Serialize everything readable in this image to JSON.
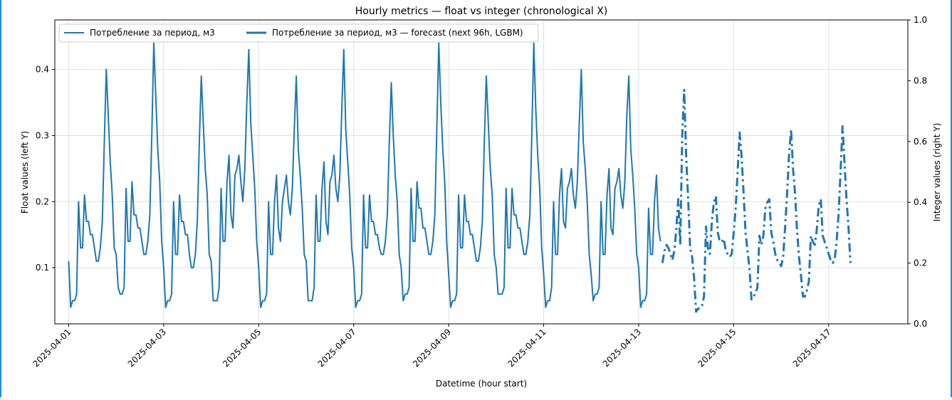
{
  "chart_data": {
    "type": "line",
    "title": "Hourly metrics — float vs integer (chronological X)",
    "xlabel": "Datetime (hour start)",
    "ylabel": "Float values (left Y)",
    "y2label": "Integer values (right Y)",
    "xlim": [
      "2025-03-31T17:00",
      "2025-04-18T16:00"
    ],
    "ylim": [
      0.015,
      0.475
    ],
    "y2lim": [
      0.0,
      1.0
    ],
    "xticks": [
      "2025-04-01",
      "2025-04-03",
      "2025-04-05",
      "2025-04-07",
      "2025-04-09",
      "2025-04-11",
      "2025-04-13",
      "2025-04-15",
      "2025-04-17"
    ],
    "yticks": [
      "0.1",
      "0.2",
      "0.3",
      "0.4"
    ],
    "y2ticks": [
      "0.0",
      "0.2",
      "0.4",
      "0.6",
      "0.8",
      "1.0"
    ],
    "grid": true,
    "legend_position": "top-left",
    "color": "#1f77b4",
    "series": [
      {
        "name": "Потребление за период, м3",
        "style": "solid",
        "start": "2025-04-01T00:00",
        "step_hours": 1,
        "values": [
          0.11,
          0.04,
          0.05,
          0.05,
          0.06,
          0.2,
          0.13,
          0.13,
          0.21,
          0.17,
          0.17,
          0.15,
          0.15,
          0.13,
          0.11,
          0.11,
          0.13,
          0.17,
          0.29,
          0.4,
          0.33,
          0.26,
          0.21,
          0.13,
          0.12,
          0.07,
          0.06,
          0.06,
          0.07,
          0.22,
          0.14,
          0.14,
          0.23,
          0.18,
          0.18,
          0.16,
          0.16,
          0.14,
          0.12,
          0.12,
          0.14,
          0.18,
          0.3,
          0.44,
          0.36,
          0.28,
          0.23,
          0.14,
          0.1,
          0.04,
          0.05,
          0.05,
          0.06,
          0.2,
          0.12,
          0.12,
          0.21,
          0.17,
          0.17,
          0.15,
          0.15,
          0.12,
          0.1,
          0.1,
          0.12,
          0.17,
          0.29,
          0.39,
          0.32,
          0.25,
          0.21,
          0.12,
          0.11,
          0.05,
          0.05,
          0.05,
          0.07,
          0.22,
          0.14,
          0.14,
          0.23,
          0.27,
          0.18,
          0.16,
          0.24,
          0.25,
          0.27,
          0.23,
          0.2,
          0.25,
          0.35,
          0.43,
          0.32,
          0.27,
          0.22,
          0.14,
          0.1,
          0.04,
          0.05,
          0.05,
          0.06,
          0.2,
          0.12,
          0.12,
          0.2,
          0.24,
          0.16,
          0.14,
          0.2,
          0.22,
          0.24,
          0.2,
          0.18,
          0.22,
          0.31,
          0.39,
          0.28,
          0.24,
          0.19,
          0.12,
          0.11,
          0.05,
          0.05,
          0.05,
          0.07,
          0.21,
          0.14,
          0.14,
          0.22,
          0.26,
          0.17,
          0.15,
          0.23,
          0.24,
          0.27,
          0.22,
          0.2,
          0.24,
          0.34,
          0.43,
          0.31,
          0.26,
          0.21,
          0.13,
          0.1,
          0.04,
          0.05,
          0.05,
          0.06,
          0.21,
          0.13,
          0.13,
          0.21,
          0.17,
          0.17,
          0.15,
          0.15,
          0.13,
          0.12,
          0.12,
          0.14,
          0.18,
          0.29,
          0.38,
          0.3,
          0.24,
          0.2,
          0.12,
          0.1,
          0.05,
          0.06,
          0.06,
          0.07,
          0.22,
          0.14,
          0.14,
          0.23,
          0.19,
          0.19,
          0.16,
          0.16,
          0.14,
          0.12,
          0.12,
          0.14,
          0.18,
          0.31,
          0.44,
          0.35,
          0.28,
          0.23,
          0.14,
          0.09,
          0.04,
          0.05,
          0.05,
          0.06,
          0.21,
          0.13,
          0.13,
          0.21,
          0.17,
          0.17,
          0.15,
          0.15,
          0.13,
          0.11,
          0.11,
          0.13,
          0.17,
          0.29,
          0.39,
          0.32,
          0.25,
          0.21,
          0.12,
          0.1,
          0.06,
          0.06,
          0.06,
          0.07,
          0.22,
          0.13,
          0.13,
          0.22,
          0.18,
          0.18,
          0.16,
          0.16,
          0.14,
          0.12,
          0.12,
          0.14,
          0.18,
          0.3,
          0.44,
          0.34,
          0.27,
          0.22,
          0.13,
          0.09,
          0.04,
          0.05,
          0.05,
          0.07,
          0.2,
          0.12,
          0.12,
          0.21,
          0.25,
          0.17,
          0.16,
          0.22,
          0.23,
          0.25,
          0.21,
          0.19,
          0.23,
          0.32,
          0.4,
          0.29,
          0.25,
          0.2,
          0.12,
          0.09,
          0.05,
          0.06,
          0.06,
          0.07,
          0.2,
          0.12,
          0.12,
          0.21,
          0.25,
          0.16,
          0.15,
          0.22,
          0.23,
          0.25,
          0.21,
          0.19,
          0.23,
          0.33,
          0.39,
          0.28,
          0.24,
          0.19,
          0.12,
          0.1,
          0.04,
          0.05,
          0.05,
          0.06,
          0.19,
          0.12,
          0.12,
          0.2,
          0.24,
          0.16,
          0.14
        ]
      },
      {
        "name": "Потребление за период, м3 — forecast (next 96h, LGBM)",
        "style": "dashdot",
        "start": "2025-04-13T12:00",
        "step_hours": 1,
        "values": [
          0.2,
          0.24,
          0.26,
          0.25,
          0.23,
          0.21,
          0.24,
          0.31,
          0.41,
          0.26,
          0.62,
          0.77,
          0.55,
          0.41,
          0.25,
          0.22,
          0.15,
          0.04,
          0.05,
          0.05,
          0.06,
          0.09,
          0.32,
          0.25,
          0.23,
          0.34,
          0.4,
          0.42,
          0.3,
          0.27,
          0.27,
          0.28,
          0.24,
          0.23,
          0.22,
          0.23,
          0.3,
          0.38,
          0.5,
          0.63,
          0.55,
          0.43,
          0.3,
          0.24,
          0.18,
          0.08,
          0.09,
          0.1,
          0.12,
          0.29,
          0.26,
          0.29,
          0.38,
          0.4,
          0.41,
          0.3,
          0.27,
          0.23,
          0.21,
          0.2,
          0.19,
          0.22,
          0.32,
          0.43,
          0.56,
          0.64,
          0.51,
          0.43,
          0.31,
          0.22,
          0.16,
          0.09,
          0.09,
          0.11,
          0.14,
          0.29,
          0.27,
          0.26,
          0.31,
          0.39,
          0.41,
          0.29,
          0.27,
          0.25,
          0.23,
          0.21,
          0.2,
          0.21,
          0.27,
          0.36,
          0.5,
          0.65,
          0.53,
          0.41,
          0.32,
          0.2
        ]
      }
    ]
  }
}
